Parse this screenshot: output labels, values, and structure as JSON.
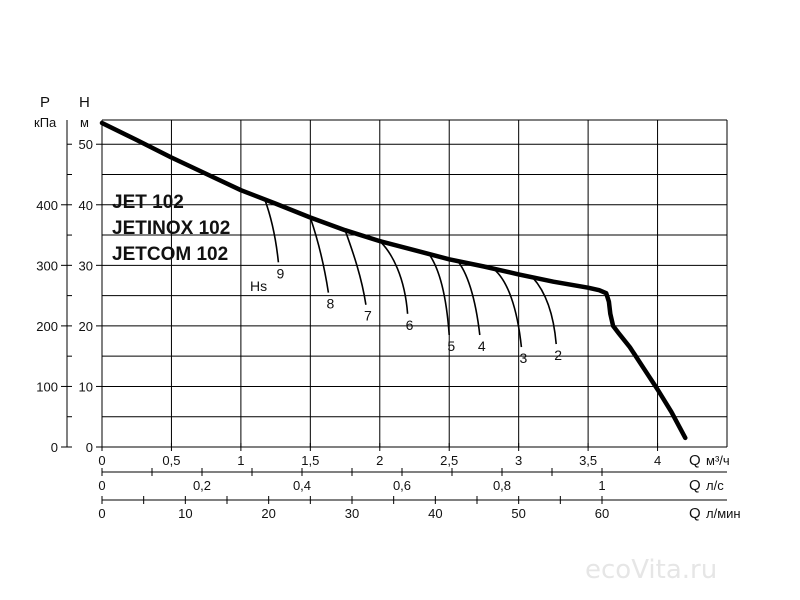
{
  "chart_data": {
    "type": "line",
    "titles": [
      "JET 102",
      "JETINOX 102",
      "JETCOM 102"
    ],
    "axis_pressure": {
      "symbol": "P",
      "unit": "кПа",
      "ticks": [
        0,
        100,
        200,
        300,
        400
      ]
    },
    "axis_head": {
      "symbol": "H",
      "unit": "м",
      "ticks": [
        0,
        10,
        20,
        30,
        40,
        50
      ]
    },
    "axis_q_m3h": {
      "symbol": "Q",
      "unit": "м³/ч",
      "ticks": [
        "0",
        "0,5",
        "1",
        "1,5",
        "2",
        "2,5",
        "3",
        "3,5",
        "4"
      ]
    },
    "axis_q_ls": {
      "symbol": "Q",
      "unit": "л/с",
      "ticks": [
        "0",
        "0,2",
        "0,4",
        "0,6",
        "0,8",
        "1"
      ]
    },
    "axis_q_lmin": {
      "symbol": "Q",
      "unit": "л/мин",
      "ticks": [
        "0",
        "10",
        "20",
        "30",
        "40",
        "50",
        "60"
      ]
    },
    "xlim": [
      0,
      4.5
    ],
    "ylim": [
      0,
      54
    ],
    "grid": true,
    "hs_label": "Hs",
    "main_curve": {
      "x": [
        0,
        0.25,
        0.5,
        0.75,
        1.0,
        1.25,
        1.5,
        1.75,
        2.0,
        2.25,
        2.5,
        2.75,
        3.0,
        3.25,
        3.5,
        3.58,
        3.63,
        3.65,
        3.66,
        3.68,
        3.72,
        3.8,
        3.9,
        4.0,
        4.1,
        4.2
      ],
      "y": [
        53.5,
        50.7,
        47.8,
        45.1,
        42.4,
        40.2,
        37.9,
        35.8,
        34.0,
        32.5,
        31.0,
        29.8,
        28.5,
        27.3,
        26.3,
        25.9,
        25.4,
        24.0,
        22.0,
        20.0,
        18.8,
        16.5,
        13.0,
        9.5,
        5.8,
        1.5
      ]
    },
    "hs_curves": [
      {
        "label": "9",
        "x": [
          1.17,
          1.21,
          1.25,
          1.27
        ],
        "y": [
          41.0,
          38.5,
          35.0,
          30.5
        ]
      },
      {
        "label": "8",
        "x": [
          1.5,
          1.55,
          1.6,
          1.63
        ],
        "y": [
          37.9,
          34.5,
          30.0,
          25.5
        ]
      },
      {
        "label": "7",
        "x": [
          1.75,
          1.81,
          1.87,
          1.9
        ],
        "y": [
          35.8,
          32.0,
          28.0,
          23.5
        ]
      },
      {
        "label": "6",
        "x": [
          2.0,
          2.09,
          2.18,
          2.2
        ],
        "y": [
          34.0,
          32.0,
          28.0,
          22.0
        ]
      },
      {
        "label": "5",
        "x": [
          2.35,
          2.43,
          2.48,
          2.5
        ],
        "y": [
          32.0,
          29.5,
          25.0,
          18.5
        ]
      },
      {
        "label": "4",
        "x": [
          2.55,
          2.63,
          2.69,
          2.72
        ],
        "y": [
          31.0,
          29.0,
          24.5,
          18.5
        ]
      },
      {
        "label": "3",
        "x": [
          2.82,
          2.92,
          2.99,
          3.02
        ],
        "y": [
          29.4,
          27.5,
          23.0,
          16.5
        ]
      },
      {
        "label": "2",
        "x": [
          3.1,
          3.18,
          3.25,
          3.27
        ],
        "y": [
          28.0,
          26.0,
          22.5,
          17.0
        ]
      }
    ]
  },
  "watermark": "ecoVita.ru"
}
